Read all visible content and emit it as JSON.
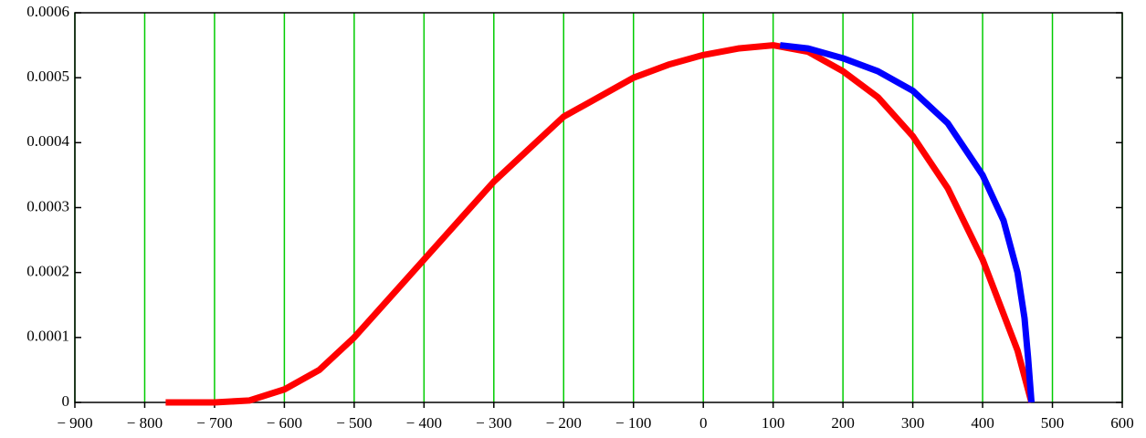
{
  "chart_data": {
    "type": "line",
    "series": [
      {
        "color": "#ff0000",
        "x": [
          -770,
          -700,
          -650,
          -600,
          -550,
          -500,
          -450,
          -400,
          -350,
          -300,
          -250,
          -200,
          -150,
          -100,
          -50,
          0,
          50,
          100,
          150,
          200,
          250,
          300,
          350,
          400,
          450,
          470
        ],
        "values": [
          0,
          0,
          3e-06,
          2e-05,
          5e-05,
          0.0001,
          0.00016,
          0.00022,
          0.00028,
          0.00034,
          0.00039,
          0.00044,
          0.00047,
          0.0005,
          0.00052,
          0.000535,
          0.000545,
          0.00055,
          0.00054,
          0.00051,
          0.00047,
          0.00041,
          0.00033,
          0.00022,
          8e-05,
          0
        ]
      },
      {
        "color": "#0000ff",
        "x": [
          110,
          150,
          200,
          250,
          300,
          350,
          400,
          430,
          450,
          460,
          465,
          470
        ],
        "values": [
          0.00055,
          0.000545,
          0.00053,
          0.00051,
          0.00048,
          0.00043,
          0.00035,
          0.00028,
          0.0002,
          0.00013,
          7e-05,
          0
        ]
      }
    ],
    "xlim": [
      -900,
      600
    ],
    "xticks": [
      {
        "value": -900,
        "label": "− 900"
      },
      {
        "value": -800,
        "label": "− 800"
      },
      {
        "value": -700,
        "label": "− 700"
      },
      {
        "value": -600,
        "label": "− 600"
      },
      {
        "value": -500,
        "label": "− 500"
      },
      {
        "value": -400,
        "label": "− 400"
      },
      {
        "value": -300,
        "label": "− 300"
      },
      {
        "value": -200,
        "label": "− 200"
      },
      {
        "value": -100,
        "label": "− 100"
      },
      0,
      100,
      200,
      300,
      400,
      500,
      600
    ],
    "ylim": [
      0,
      0.0006
    ],
    "yticks": [
      0,
      0.0001,
      0.0002,
      0.0003,
      0.0004,
      0.0005,
      0.0006
    ],
    "grid": "x",
    "grid_color": "#00cc00"
  }
}
